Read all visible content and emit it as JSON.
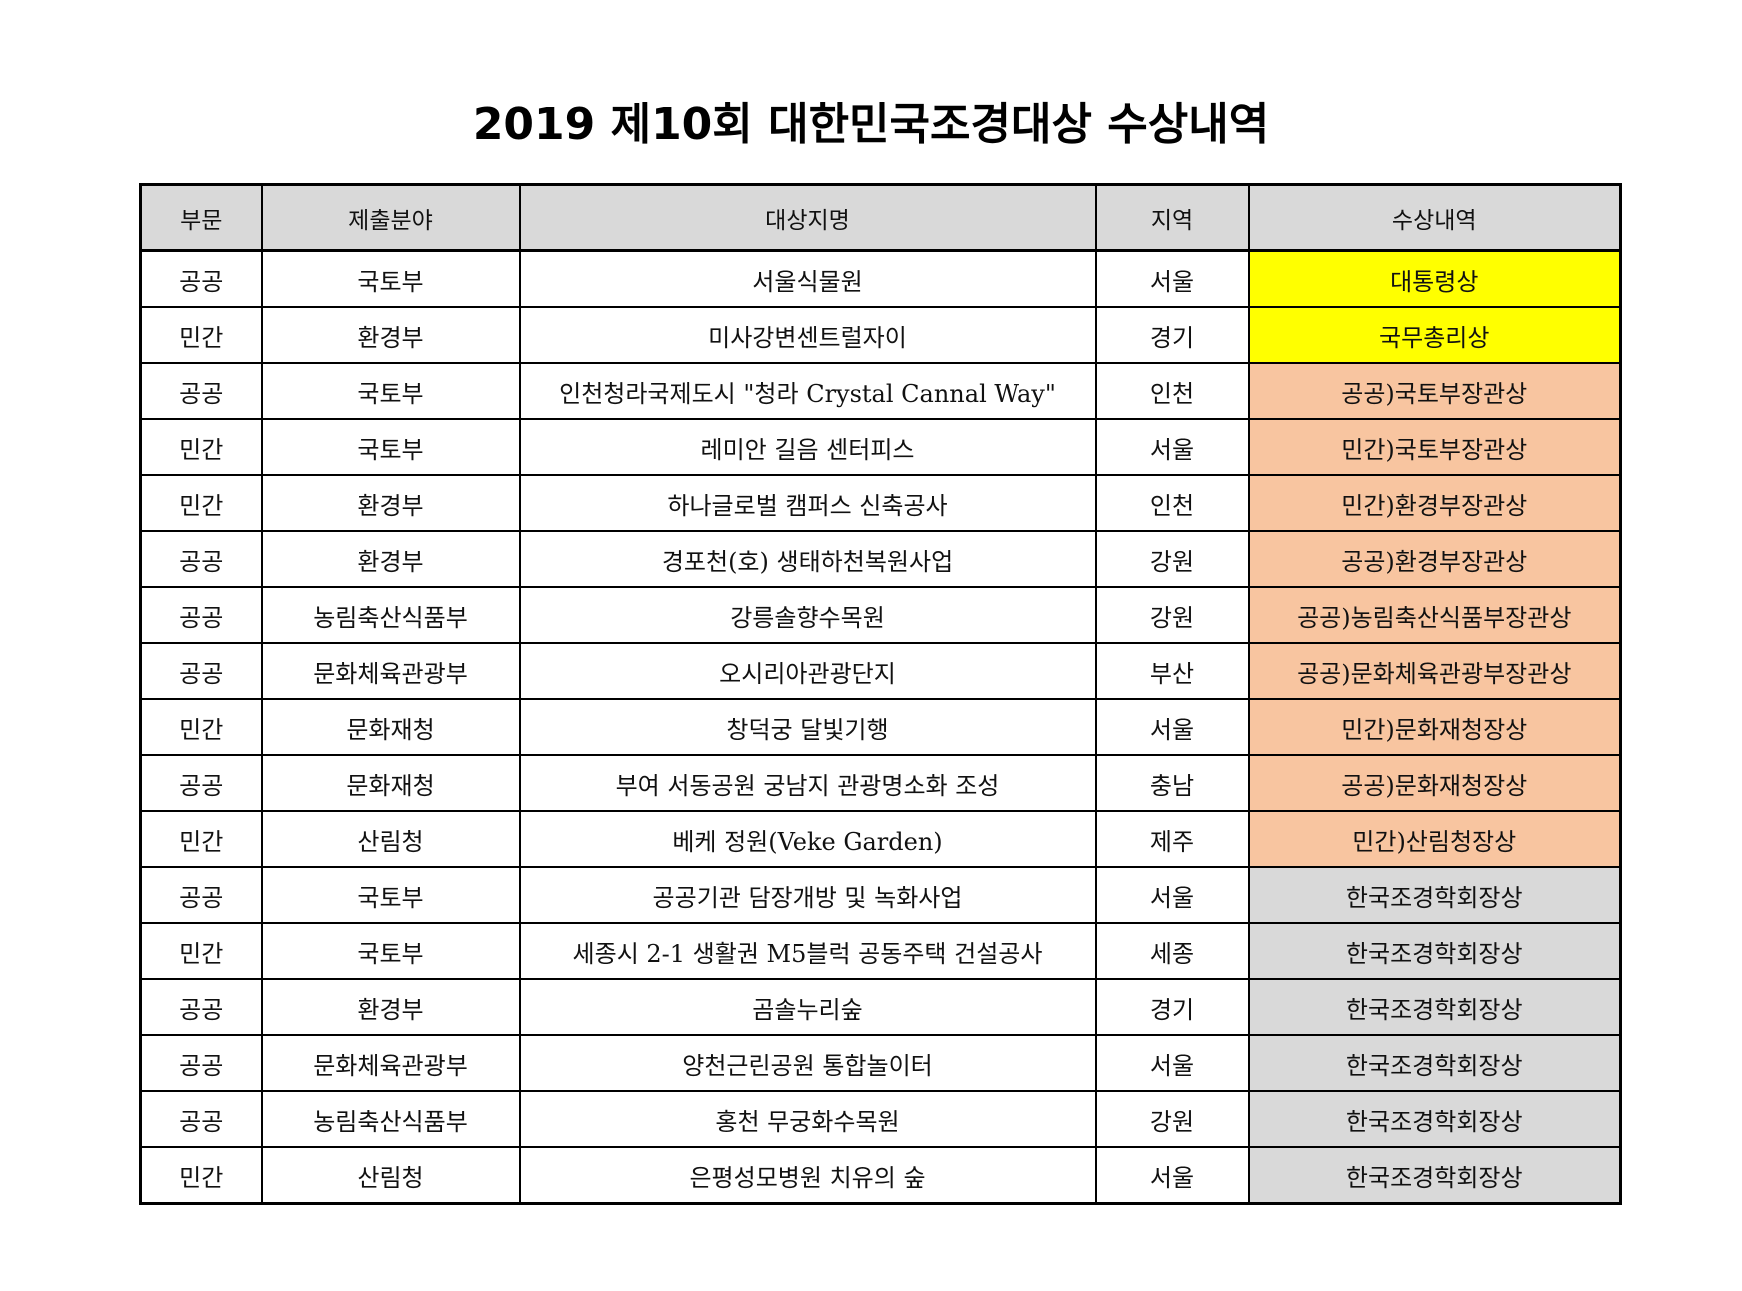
{
  "title": "2019 제10회 대한민국조경대상 수상내역",
  "headers": [
    "부문",
    "제출분야",
    "대상지명",
    "지역",
    "수상내역"
  ],
  "colors": {
    "header_bg": "#d9d9d9",
    "gold": "#ffff00",
    "orange": "#f8c5a0",
    "grey": "#d9d9d9"
  },
  "rows": [
    {
      "category": "공공",
      "field": "국토부",
      "site": "서울식물원",
      "region": "서울",
      "award": "대통령상",
      "tier": "gold"
    },
    {
      "category": "민간",
      "field": "환경부",
      "site": "미사강변센트럴자이",
      "region": "경기",
      "award": "국무총리상",
      "tier": "gold"
    },
    {
      "category": "공공",
      "field": "국토부",
      "site": "인천청라국제도시 \"청라 Crystal Cannal Way\"",
      "region": "인천",
      "award": "공공)국토부장관상",
      "tier": "orange"
    },
    {
      "category": "민간",
      "field": "국토부",
      "site": "레미안 길음 센터피스",
      "region": "서울",
      "award": "민간)국토부장관상",
      "tier": "orange"
    },
    {
      "category": "민간",
      "field": "환경부",
      "site": "하나글로벌 캠퍼스 신축공사",
      "region": "인천",
      "award": "민간)환경부장관상",
      "tier": "orange"
    },
    {
      "category": "공공",
      "field": "환경부",
      "site": "경포천(호) 생태하천복원사업",
      "region": "강원",
      "award": "공공)환경부장관상",
      "tier": "orange"
    },
    {
      "category": "공공",
      "field": "농림축산식품부",
      "site": "강릉솔향수목원",
      "region": "강원",
      "award": "공공)농림축산식품부장관상",
      "tier": "orange"
    },
    {
      "category": "공공",
      "field": "문화체육관광부",
      "site": "오시리아관광단지",
      "region": "부산",
      "award": "공공)문화체육관광부장관상",
      "tier": "orange"
    },
    {
      "category": "민간",
      "field": "문화재청",
      "site": "창덕궁 달빛기행",
      "region": "서울",
      "award": "민간)문화재청장상",
      "tier": "orange"
    },
    {
      "category": "공공",
      "field": "문화재청",
      "site": "부여 서동공원 궁남지 관광명소화 조성",
      "region": "충남",
      "award": "공공)문화재청장상",
      "tier": "orange"
    },
    {
      "category": "민간",
      "field": "산림청",
      "site": "베케 정원(Veke Garden)",
      "region": "제주",
      "award": "민간)산림청장상",
      "tier": "orange"
    },
    {
      "category": "공공",
      "field": "국토부",
      "site": "공공기관 담장개방 및 녹화사업",
      "region": "서울",
      "award": "한국조경학회장상",
      "tier": "grey"
    },
    {
      "category": "민간",
      "field": "국토부",
      "site": "세종시 2-1 생활권 M5블럭 공동주택 건설공사",
      "region": "세종",
      "award": "한국조경학회장상",
      "tier": "grey"
    },
    {
      "category": "공공",
      "field": "환경부",
      "site": "곰솔누리숲",
      "region": "경기",
      "award": "한국조경학회장상",
      "tier": "grey"
    },
    {
      "category": "공공",
      "field": "문화체육관광부",
      "site": "양천근린공원 통합놀이터",
      "region": "서울",
      "award": "한국조경학회장상",
      "tier": "grey"
    },
    {
      "category": "공공",
      "field": "농림축산식품부",
      "site": "홍천 무궁화수목원",
      "region": "강원",
      "award": "한국조경학회장상",
      "tier": "grey"
    },
    {
      "category": "민간",
      "field": "산림청",
      "site": "은평성모병원 치유의 숲",
      "region": "서울",
      "award": "한국조경학회장상",
      "tier": "grey"
    }
  ]
}
